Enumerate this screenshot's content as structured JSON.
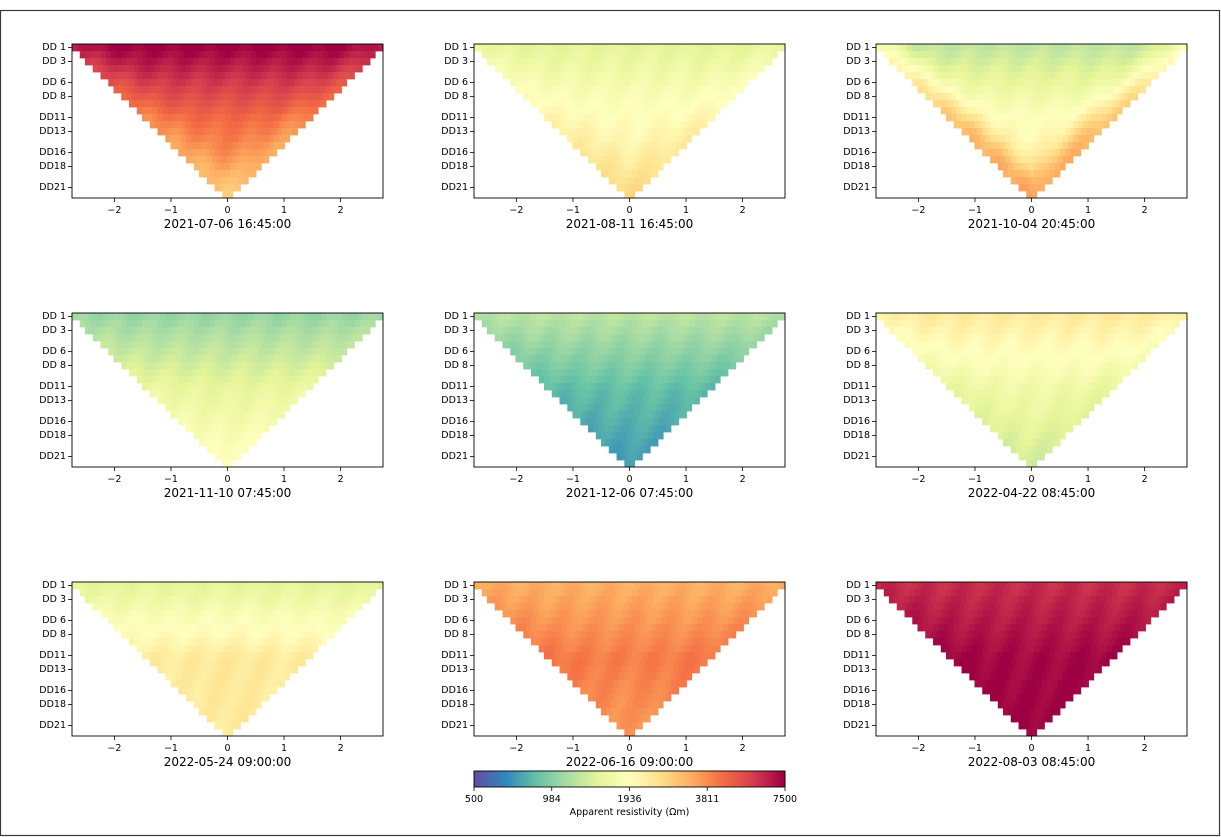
{
  "chart_data": {
    "type": "heatmap",
    "colormap": "Spectral_r",
    "pseudosection": {
      "y_tick_labels": [
        "DD 1",
        "DD 3",
        "DD 6",
        "DD 8",
        "DD11",
        "DD13",
        "DD16",
        "DD18",
        "DD21"
      ],
      "x_ticks": [
        -2,
        -1,
        0,
        1,
        2
      ],
      "x_tick_labels": [
        "−2",
        "−1",
        "0",
        "1",
        "2"
      ],
      "xlim": [
        -2.75,
        2.75
      ],
      "n_levels": 22
    },
    "panels": [
      {
        "title": "2021-07-06 16:45:00",
        "shallow": 7500,
        "mid": 4400,
        "deep": 3300,
        "flank": 3700,
        "center": 3300
      },
      {
        "title": "2021-08-11 16:45:00",
        "shallow": 1500,
        "mid": 2000,
        "deep": 2500,
        "flank": 2200,
        "center": 2400
      },
      {
        "title": "2021-10-04 20:45:00",
        "shallow": 1250,
        "mid": 2000,
        "deep": 2500,
        "flank": 3300,
        "center": 2200
      },
      {
        "title": "2021-11-10 07:45:00",
        "shallow": 1050,
        "mid": 1550,
        "deep": 1950,
        "flank": 1600,
        "center": 1900
      },
      {
        "title": "2021-12-06 07:45:00",
        "shallow": 1200,
        "mid": 850,
        "deep": 740,
        "flank": 820,
        "center": 730
      },
      {
        "title": "2022-04-22 08:45:00",
        "shallow": 2300,
        "mid": 1650,
        "deep": 1450,
        "flank": 1500,
        "center": 1450
      },
      {
        "title": "2022-05-24 09:00:00",
        "shallow": 1500,
        "mid": 2300,
        "deep": 2200,
        "flank": 2300,
        "center": 2400
      },
      {
        "title": "2022-06-16 09:00:00",
        "shallow": 3300,
        "mid": 4100,
        "deep": 3500,
        "flank": 4300,
        "center": 3500
      },
      {
        "title": "2022-08-03 08:45:00",
        "shallow": 6200,
        "mid": 7300,
        "deep": 7400,
        "flank": 7500,
        "center": 7300
      }
    ],
    "colorbar": {
      "label": "Apparent resistivity (Ωm)",
      "ticks": [
        500,
        984,
        1936,
        3811,
        7500
      ],
      "tick_labels": [
        "500",
        "984",
        "1936",
        "3811",
        "7500"
      ],
      "range": [
        500,
        7500
      ],
      "scale": "log"
    }
  }
}
